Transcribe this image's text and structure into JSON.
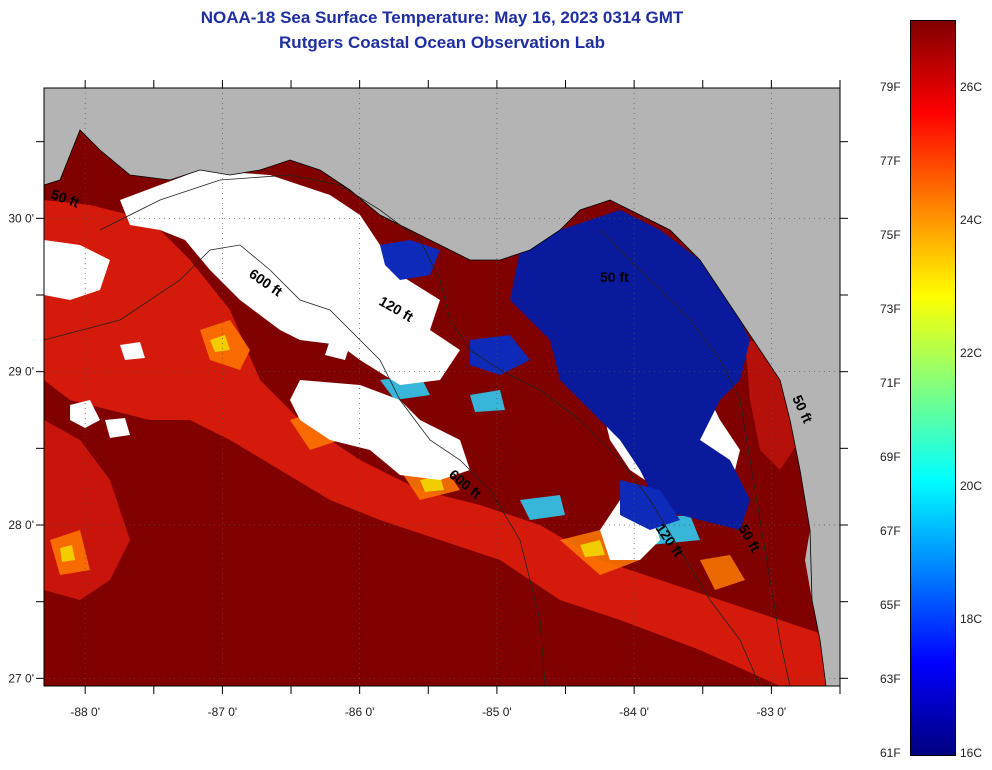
{
  "title": "NOAA-18 Sea Surface Temperature:  May 16, 2023 0314 GMT",
  "subtitle": "Rutgers Coastal Ocean Observation Lab",
  "map": {
    "lon_range": [
      -88.3,
      -82.5
    ],
    "lat_range": [
      26.95,
      30.85
    ],
    "lon_ticks": [
      {
        "value": -88,
        "label": "-88 0'"
      },
      {
        "value": -87,
        "label": "-87 0'"
      },
      {
        "value": -86,
        "label": "-86 0'"
      },
      {
        "value": -85,
        "label": "-85 0'"
      },
      {
        "value": -84,
        "label": "-84 0'"
      },
      {
        "value": -83,
        "label": "-83 0'"
      }
    ],
    "lat_ticks": [
      {
        "value": 30,
        "label": "30 0'"
      },
      {
        "value": 29,
        "label": "29 0'"
      },
      {
        "value": 28,
        "label": "28 0'"
      },
      {
        "value": 27,
        "label": "27 0'"
      }
    ],
    "contour_labels": [
      "600 ft",
      "120 ft",
      "50 ft",
      "600 ft",
      "120 ft",
      "50 ft",
      "50 ft",
      "50 ft"
    ],
    "colors": {
      "land": "#b4b4b4",
      "cloud": "#ffffff",
      "warm_water": "#800000",
      "cold_water": "#0a1a9c",
      "grid": "#555555"
    }
  },
  "colorbar": {
    "fahrenheit_labels": [
      "79F",
      "77F",
      "75F",
      "73F",
      "71F",
      "69F",
      "67F",
      "65F",
      "63F",
      "61F"
    ],
    "celsius_labels": [
      "26C",
      "24C",
      "22C",
      "20C",
      "18C",
      "16C"
    ],
    "gradient": [
      "#00007f",
      "#0000ff",
      "#0080ff",
      "#00ffff",
      "#80ff80",
      "#ffff00",
      "#ff8000",
      "#ff0000",
      "#800000"
    ]
  }
}
